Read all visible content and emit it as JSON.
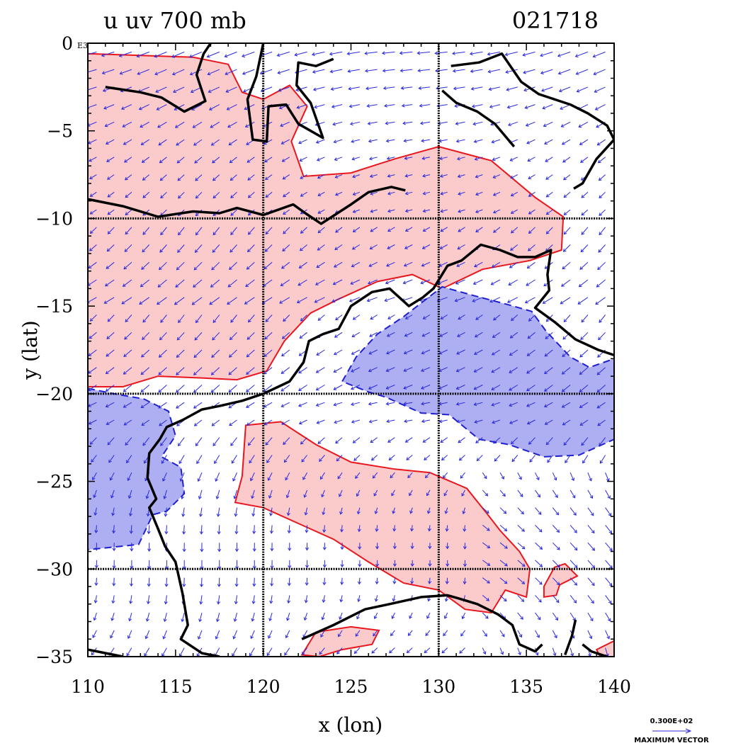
{
  "plot": {
    "title_left": "u uv 700 mb",
    "title_right": "021718",
    "xlabel": "x (lon)",
    "ylabel": "y (lat)",
    "y_tick_suffix": "E3",
    "reference_vector": {
      "magnitude_label": "0.300E+02",
      "caption": "MAXIMUM VECTOR"
    }
  },
  "map_data": {
    "lon_range": [
      110,
      140
    ],
    "lat_range": [
      -35,
      0
    ],
    "x_ticks": [
      "110",
      "115",
      "120",
      "125",
      "130",
      "135",
      "140"
    ],
    "y_ticks": [
      "0",
      "−5",
      "−10",
      "−15",
      "−20",
      "−25",
      "−30",
      "−35"
    ],
    "grid_lons": [
      120,
      130
    ],
    "grid_lats": [
      -10,
      -20,
      -30
    ],
    "colors": {
      "positive_fill": "#fbcaca",
      "positive_line": "#e8171e",
      "negative_fill": "#aeaef2",
      "negative_line": "#2020d0",
      "vector": "#2a2adb",
      "coast": "#000000"
    },
    "positive_regions": [
      [
        [
          110,
          -0.6
        ],
        [
          113,
          -0.7
        ],
        [
          116,
          -0.8
        ],
        [
          118,
          -1.2
        ],
        [
          118.8,
          -2.8
        ],
        [
          120,
          -3.2
        ],
        [
          121.5,
          -2.4
        ],
        [
          122.5,
          -3.6
        ],
        [
          121.6,
          -5.6
        ],
        [
          122.3,
          -7.6
        ],
        [
          125,
          -7.4
        ],
        [
          127.5,
          -6.6
        ],
        [
          130,
          -5.9
        ],
        [
          133,
          -6.7
        ],
        [
          135.5,
          -8.8
        ],
        [
          137.1,
          -9.9
        ],
        [
          137,
          -11.8
        ],
        [
          135.2,
          -12.4
        ],
        [
          132.5,
          -12.9
        ],
        [
          130.2,
          -14
        ],
        [
          128.5,
          -13.2
        ],
        [
          126.5,
          -13.6
        ],
        [
          124.3,
          -14.6
        ],
        [
          122.7,
          -15.4
        ],
        [
          121.2,
          -17
        ],
        [
          120.2,
          -18.7
        ],
        [
          118.5,
          -19.2
        ],
        [
          116.5,
          -19.1
        ],
        [
          114,
          -19
        ],
        [
          112,
          -19.6
        ],
        [
          110,
          -19.6
        ]
      ],
      [
        [
          119,
          -21.8
        ],
        [
          121,
          -21.6
        ],
        [
          123,
          -22.9
        ],
        [
          125,
          -23.9
        ],
        [
          127.5,
          -24.3
        ],
        [
          129.5,
          -24.5
        ],
        [
          131.6,
          -25.4
        ],
        [
          132.8,
          -26.9
        ],
        [
          133.5,
          -27.8
        ],
        [
          134.6,
          -29
        ],
        [
          135.2,
          -30
        ],
        [
          135,
          -31.6
        ],
        [
          133.8,
          -31.2
        ],
        [
          133,
          -32.5
        ],
        [
          131.5,
          -32.3
        ],
        [
          130,
          -31.2
        ],
        [
          128,
          -30.8
        ],
        [
          126,
          -29.6
        ],
        [
          124,
          -28.3
        ],
        [
          122,
          -27.4
        ],
        [
          120,
          -26.5
        ],
        [
          118.4,
          -26.2
        ],
        [
          118.8,
          -24.7
        ]
      ],
      [
        [
          122.2,
          -34.9
        ],
        [
          123,
          -33.6
        ],
        [
          125,
          -33.3
        ],
        [
          126.6,
          -33.5
        ],
        [
          126.2,
          -34.3
        ],
        [
          124.5,
          -34.6
        ],
        [
          123.2,
          -35
        ]
      ],
      [
        [
          137.9,
          -30.4
        ],
        [
          137.2,
          -29.7
        ],
        [
          136.6,
          -29.9
        ],
        [
          136,
          -31
        ],
        [
          136,
          -31.6
        ],
        [
          136.7,
          -31.5
        ],
        [
          136.9,
          -30.9
        ]
      ],
      [
        [
          139,
          -34.6
        ],
        [
          140,
          -34.1
        ],
        [
          140,
          -35
        ],
        [
          139.2,
          -35
        ]
      ]
    ],
    "negative_regions": [
      [
        [
          124.5,
          -19.3
        ],
        [
          125.3,
          -17.9
        ],
        [
          126.5,
          -16.6
        ],
        [
          128,
          -15.6
        ],
        [
          130.2,
          -13.9
        ],
        [
          132,
          -14.4
        ],
        [
          133.9,
          -14.9
        ],
        [
          135.3,
          -15.3
        ],
        [
          136.1,
          -16.4
        ],
        [
          137.5,
          -17.9
        ],
        [
          138.6,
          -18.5
        ],
        [
          140,
          -18
        ],
        [
          140,
          -22.6
        ],
        [
          138,
          -23.5
        ],
        [
          136,
          -23.6
        ],
        [
          134,
          -22.9
        ],
        [
          132.3,
          -22.6
        ],
        [
          130.6,
          -21.2
        ],
        [
          129,
          -21.1
        ],
        [
          127,
          -20.2
        ],
        [
          126,
          -19.9
        ]
      ],
      [
        [
          110,
          -19.7
        ],
        [
          111.5,
          -20
        ],
        [
          113.2,
          -20.3
        ],
        [
          114.6,
          -21
        ],
        [
          115,
          -22.4
        ],
        [
          114.2,
          -23.6
        ],
        [
          115.3,
          -24.2
        ],
        [
          115.5,
          -25.7
        ],
        [
          114.5,
          -26.7
        ],
        [
          113.7,
          -26.9
        ],
        [
          112.9,
          -28.6
        ],
        [
          110,
          -28.9
        ]
      ]
    ],
    "coastlines": [
      [
        [
          110,
          -8.9
        ],
        [
          112,
          -9.3
        ],
        [
          114,
          -9.9
        ],
        [
          116,
          -9.6
        ],
        [
          117.5,
          -9.7
        ],
        [
          118.5,
          -9.4
        ],
        [
          120,
          -9.8
        ],
        [
          121.7,
          -9.2
        ],
        [
          122.4,
          -9.7
        ],
        [
          123.3,
          -10.3
        ],
        [
          125,
          -9.2
        ],
        [
          126,
          -8.5
        ],
        [
          127.3,
          -8.2
        ],
        [
          128.1,
          -8.4
        ]
      ],
      [
        [
          111,
          -2.5
        ],
        [
          113,
          -2.8
        ],
        [
          114.2,
          -3.1
        ],
        [
          115.5,
          -3.9
        ],
        [
          116.7,
          -3.3
        ],
        [
          116.2,
          -1.8
        ],
        [
          116.6,
          -0.6
        ],
        [
          117,
          0
        ]
      ],
      [
        [
          120,
          0
        ],
        [
          119.6,
          -1.9
        ],
        [
          119.1,
          -3.2
        ],
        [
          119.4,
          -5.5
        ],
        [
          120.2,
          -5.6
        ],
        [
          120.3,
          -3.6
        ],
        [
          121.3,
          -3.5
        ],
        [
          122,
          -4.6
        ],
        [
          123.4,
          -5.4
        ],
        [
          122.7,
          -3.4
        ],
        [
          121.9,
          -2.4
        ],
        [
          122,
          -1.1
        ],
        [
          123,
          -1.3
        ],
        [
          124,
          -0.9
        ]
      ],
      [
        [
          130.7,
          -1.3
        ],
        [
          132.3,
          -1.1
        ],
        [
          133.6,
          -0.6
        ],
        [
          134.7,
          -2.2
        ],
        [
          135.7,
          -2.9
        ],
        [
          137.5,
          -3.5
        ],
        [
          138.5,
          -4
        ],
        [
          139.6,
          -4.7
        ],
        [
          140,
          -5.5
        ],
        [
          139,
          -6.6
        ],
        [
          138.2,
          -8
        ],
        [
          137.7,
          -8.3
        ]
      ],
      [
        [
          130.2,
          -2.7
        ],
        [
          131,
          -3.4
        ],
        [
          132.2,
          -3.9
        ],
        [
          133.2,
          -4.6
        ],
        [
          134.3,
          -5.9
        ]
      ],
      [
        [
          110,
          -34.6
        ],
        [
          112,
          -35
        ]
      ],
      [
        [
          120,
          -20
        ],
        [
          121.5,
          -19.3
        ],
        [
          122.3,
          -18.2
        ],
        [
          122.6,
          -17
        ],
        [
          123.4,
          -16.6
        ],
        [
          124.3,
          -16.3
        ],
        [
          125,
          -15
        ],
        [
          126.2,
          -14.2
        ],
        [
          127.2,
          -14
        ],
        [
          128.3,
          -15
        ],
        [
          129.1,
          -14.5
        ],
        [
          129.7,
          -14
        ],
        [
          130.5,
          -12.7
        ],
        [
          131.3,
          -12.4
        ],
        [
          132.4,
          -11.5
        ],
        [
          133.5,
          -11.8
        ],
        [
          134.5,
          -12.2
        ],
        [
          135.5,
          -12.2
        ],
        [
          136.4,
          -11.8
        ],
        [
          136.2,
          -13.2
        ],
        [
          136.3,
          -14.1
        ],
        [
          135.5,
          -15.1
        ],
        [
          136.6,
          -15.9
        ],
        [
          137.8,
          -16.9
        ],
        [
          139.1,
          -17.5
        ],
        [
          140,
          -17.8
        ]
      ],
      [
        [
          120,
          -20
        ],
        [
          118.8,
          -20.4
        ],
        [
          117.5,
          -20.7
        ],
        [
          116.5,
          -20.9
        ],
        [
          115.4,
          -21.5
        ],
        [
          114.5,
          -21.9
        ],
        [
          114.1,
          -22.6
        ],
        [
          113.5,
          -23.4
        ],
        [
          113.4,
          -24.8
        ],
        [
          113.9,
          -26
        ],
        [
          113.5,
          -26.5
        ],
        [
          114,
          -27.7
        ],
        [
          114.4,
          -28.7
        ],
        [
          115,
          -29.6
        ],
        [
          115.4,
          -31.4
        ],
        [
          115.7,
          -33.2
        ],
        [
          115.3,
          -34
        ],
        [
          116.5,
          -34.8
        ],
        [
          117.5,
          -35
        ]
      ],
      [
        [
          122.2,
          -34
        ],
        [
          124,
          -33.2
        ],
        [
          125.8,
          -32.3
        ],
        [
          127.2,
          -32
        ],
        [
          129,
          -31.6
        ],
        [
          130.5,
          -31.5
        ],
        [
          131.2,
          -31.7
        ],
        [
          132.2,
          -32
        ],
        [
          133.4,
          -32.6
        ],
        [
          134.2,
          -33.2
        ],
        [
          134.6,
          -34.3
        ],
        [
          135.5,
          -34.7
        ],
        [
          135.9,
          -34.3
        ]
      ],
      [
        [
          137.8,
          -32.9
        ],
        [
          137.6,
          -33.8
        ],
        [
          137.2,
          -34.9
        ]
      ],
      [
        [
          138.2,
          -34.3
        ],
        [
          138.7,
          -34.7
        ],
        [
          139.6,
          -35
        ]
      ]
    ]
  }
}
